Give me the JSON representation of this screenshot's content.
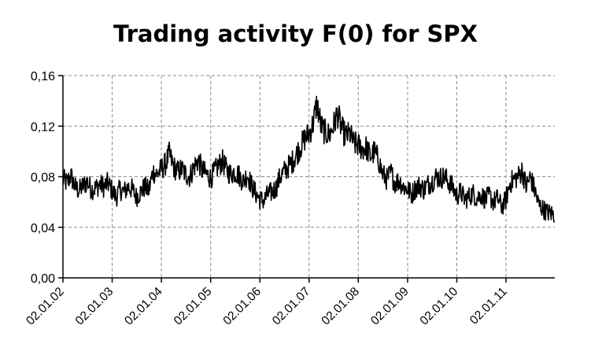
{
  "chart_data": {
    "type": "line",
    "title": "Trading activity F(0) for SPX",
    "xlabel": "",
    "ylabel": "",
    "ylim": [
      0,
      0.16
    ],
    "yticks": [
      "0,00",
      "0,04",
      "0,08",
      "0,12",
      "0,16"
    ],
    "xticks": [
      "02.01.02",
      "02.01.03",
      "02.01.04",
      "02.01.05",
      "02.01.06",
      "02.01.07",
      "02.01.08",
      "02.01.09",
      "02.01.10",
      "02.01.11"
    ],
    "grid": true,
    "series": [
      {
        "color": "#000000",
        "points": [
          [
            "2002-01-02",
            0.078
          ],
          [
            "2002-02-01",
            0.075
          ],
          [
            "2002-03-01",
            0.081
          ],
          [
            "2002-04-01",
            0.072
          ],
          [
            "2002-05-01",
            0.069
          ],
          [
            "2002-06-01",
            0.073
          ],
          [
            "2002-07-01",
            0.076
          ],
          [
            "2002-08-01",
            0.07
          ],
          [
            "2002-09-01",
            0.071
          ],
          [
            "2002-10-01",
            0.074
          ],
          [
            "2002-11-01",
            0.072
          ],
          [
            "2002-12-01",
            0.075
          ],
          [
            "2003-01-02",
            0.069
          ],
          [
            "2003-02-01",
            0.064
          ],
          [
            "2003-03-01",
            0.07
          ],
          [
            "2003-04-01",
            0.068
          ],
          [
            "2003-05-01",
            0.072
          ],
          [
            "2003-06-01",
            0.07
          ],
          [
            "2003-07-01",
            0.064
          ],
          [
            "2003-08-01",
            0.068
          ],
          [
            "2003-09-01",
            0.072
          ],
          [
            "2003-10-01",
            0.069
          ],
          [
            "2003-11-01",
            0.084
          ],
          [
            "2003-12-01",
            0.082
          ],
          [
            "2004-01-02",
            0.086
          ],
          [
            "2004-02-01",
            0.09
          ],
          [
            "2004-03-01",
            0.098
          ],
          [
            "2004-04-01",
            0.088
          ],
          [
            "2004-05-01",
            0.084
          ],
          [
            "2004-06-01",
            0.086
          ],
          [
            "2004-07-01",
            0.082
          ],
          [
            "2004-08-01",
            0.08
          ],
          [
            "2004-09-01",
            0.088
          ],
          [
            "2004-10-01",
            0.093
          ],
          [
            "2004-11-01",
            0.085
          ],
          [
            "2004-12-01",
            0.082
          ],
          [
            "2005-01-02",
            0.079
          ],
          [
            "2005-02-01",
            0.084
          ],
          [
            "2005-03-01",
            0.089
          ],
          [
            "2005-04-01",
            0.092
          ],
          [
            "2005-05-01",
            0.085
          ],
          [
            "2005-06-01",
            0.082
          ],
          [
            "2005-07-01",
            0.084
          ],
          [
            "2005-08-01",
            0.081
          ],
          [
            "2005-09-01",
            0.076
          ],
          [
            "2005-10-01",
            0.082
          ],
          [
            "2005-11-01",
            0.073
          ],
          [
            "2005-12-01",
            0.067
          ],
          [
            "2006-01-02",
            0.062
          ],
          [
            "2006-02-01",
            0.061
          ],
          [
            "2006-03-01",
            0.066
          ],
          [
            "2006-04-01",
            0.068
          ],
          [
            "2006-05-01",
            0.071
          ],
          [
            "2006-06-01",
            0.08
          ],
          [
            "2006-07-01",
            0.084
          ],
          [
            "2006-08-01",
            0.088
          ],
          [
            "2006-09-01",
            0.092
          ],
          [
            "2006-10-01",
            0.098
          ],
          [
            "2006-11-01",
            0.104
          ],
          [
            "2006-12-01",
            0.11
          ],
          [
            "2007-01-02",
            0.114
          ],
          [
            "2007-02-01",
            0.122
          ],
          [
            "2007-03-01",
            0.138
          ],
          [
            "2007-04-01",
            0.12
          ],
          [
            "2007-05-01",
            0.115
          ],
          [
            "2007-06-01",
            0.113
          ],
          [
            "2007-07-01",
            0.12
          ],
          [
            "2007-08-01",
            0.13
          ],
          [
            "2007-09-01",
            0.118
          ],
          [
            "2007-10-01",
            0.112
          ],
          [
            "2007-11-01",
            0.114
          ],
          [
            "2007-12-01",
            0.106
          ],
          [
            "2008-01-02",
            0.105
          ],
          [
            "2008-02-01",
            0.102
          ],
          [
            "2008-03-01",
            0.103
          ],
          [
            "2008-04-01",
            0.096
          ],
          [
            "2008-05-01",
            0.1
          ],
          [
            "2008-06-01",
            0.093
          ],
          [
            "2008-07-01",
            0.082
          ],
          [
            "2008-08-01",
            0.078
          ],
          [
            "2008-09-01",
            0.083
          ],
          [
            "2008-10-01",
            0.075
          ],
          [
            "2008-11-01",
            0.077
          ],
          [
            "2008-12-01",
            0.072
          ],
          [
            "2009-01-02",
            0.07
          ],
          [
            "2009-02-01",
            0.066
          ],
          [
            "2009-03-01",
            0.071
          ],
          [
            "2009-04-01",
            0.073
          ],
          [
            "2009-05-01",
            0.07
          ],
          [
            "2009-06-01",
            0.074
          ],
          [
            "2009-07-01",
            0.076
          ],
          [
            "2009-08-01",
            0.08
          ],
          [
            "2009-09-01",
            0.079
          ],
          [
            "2009-10-01",
            0.08
          ],
          [
            "2009-11-01",
            0.076
          ],
          [
            "2009-12-01",
            0.072
          ],
          [
            "2010-01-02",
            0.065
          ],
          [
            "2010-02-01",
            0.068
          ],
          [
            "2010-03-01",
            0.062
          ],
          [
            "2010-04-01",
            0.064
          ],
          [
            "2010-05-01",
            0.067
          ],
          [
            "2010-06-01",
            0.063
          ],
          [
            "2010-07-01",
            0.066
          ],
          [
            "2010-08-01",
            0.062
          ],
          [
            "2010-09-01",
            0.065
          ],
          [
            "2010-10-01",
            0.06
          ],
          [
            "2010-11-01",
            0.063
          ],
          [
            "2010-12-01",
            0.056
          ],
          [
            "2011-01-02",
            0.062
          ],
          [
            "2011-02-01",
            0.075
          ],
          [
            "2011-03-01",
            0.078
          ],
          [
            "2011-04-01",
            0.08
          ],
          [
            "2011-05-01",
            0.085
          ],
          [
            "2011-06-01",
            0.072
          ],
          [
            "2011-07-01",
            0.08
          ],
          [
            "2011-08-01",
            0.07
          ],
          [
            "2011-09-01",
            0.058
          ],
          [
            "2011-10-01",
            0.055
          ],
          [
            "2011-11-01",
            0.052
          ],
          [
            "2011-12-30",
            0.05
          ]
        ]
      }
    ]
  }
}
